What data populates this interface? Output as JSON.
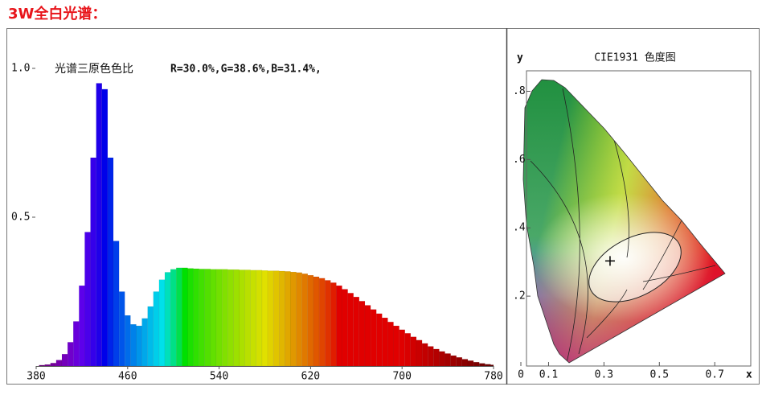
{
  "title": "3W全白光谱：",
  "chart_data": [
    {
      "type": "spectrum",
      "title": "光谱三原色色比",
      "annotation": "R=30.0%,G=38.6%,B=31.4%,",
      "x": [
        380,
        385,
        390,
        395,
        400,
        405,
        410,
        415,
        420,
        425,
        430,
        435,
        440,
        445,
        450,
        455,
        460,
        465,
        470,
        475,
        480,
        485,
        490,
        495,
        500,
        505,
        510,
        515,
        520,
        525,
        530,
        535,
        540,
        545,
        550,
        555,
        560,
        565,
        570,
        575,
        580,
        585,
        590,
        595,
        600,
        605,
        610,
        615,
        620,
        625,
        630,
        635,
        640,
        645,
        650,
        655,
        660,
        665,
        670,
        675,
        680,
        685,
        690,
        695,
        700,
        705,
        710,
        715,
        720,
        725,
        730,
        735,
        740,
        745,
        750,
        755,
        760,
        765,
        770,
        775,
        780
      ],
      "values": [
        0,
        0.003,
        0.005,
        0.01,
        0.02,
        0.04,
        0.08,
        0.15,
        0.27,
        0.45,
        0.7,
        0.95,
        0.93,
        0.7,
        0.42,
        0.25,
        0.17,
        0.14,
        0.135,
        0.16,
        0.2,
        0.25,
        0.29,
        0.315,
        0.325,
        0.33,
        0.33,
        0.328,
        0.327,
        0.326,
        0.326,
        0.325,
        0.325,
        0.325,
        0.324,
        0.324,
        0.323,
        0.323,
        0.322,
        0.322,
        0.321,
        0.32,
        0.32,
        0.319,
        0.318,
        0.316,
        0.314,
        0.31,
        0.305,
        0.3,
        0.295,
        0.288,
        0.28,
        0.27,
        0.258,
        0.245,
        0.232,
        0.218,
        0.204,
        0.19,
        0.176,
        0.162,
        0.148,
        0.135,
        0.122,
        0.11,
        0.098,
        0.087,
        0.076,
        0.066,
        0.057,
        0.049,
        0.042,
        0.035,
        0.029,
        0.023,
        0.018,
        0.013,
        0.009,
        0.006,
        0.004
      ],
      "xlim": [
        380,
        780
      ],
      "xticks": [
        380,
        460,
        540,
        620,
        700,
        780
      ],
      "ylim": [
        0,
        1
      ],
      "yticks": [
        {
          "value": 1,
          "label": "1.0"
        },
        0.5
      ],
      "grid": false
    },
    {
      "type": "scatter",
      "title": "CIE1931 色度图",
      "xlabel": "x",
      "ylabel": "y",
      "x": [
        0.322
      ],
      "y": [
        0.303
      ],
      "color": "#000000",
      "xlim": [
        0,
        0.83
      ],
      "xticks": [
        0,
        0.1,
        0.3,
        0.5,
        0.7
      ],
      "ylim": [
        0,
        0.86
      ],
      "yticks": [
        {
          "value": 0.8,
          "label": ".8"
        },
        {
          "value": 0.6,
          "label": ".6"
        },
        {
          "value": 0.4,
          "label": ".4"
        },
        {
          "value": 0.2,
          "label": ".2"
        }
      ]
    }
  ]
}
